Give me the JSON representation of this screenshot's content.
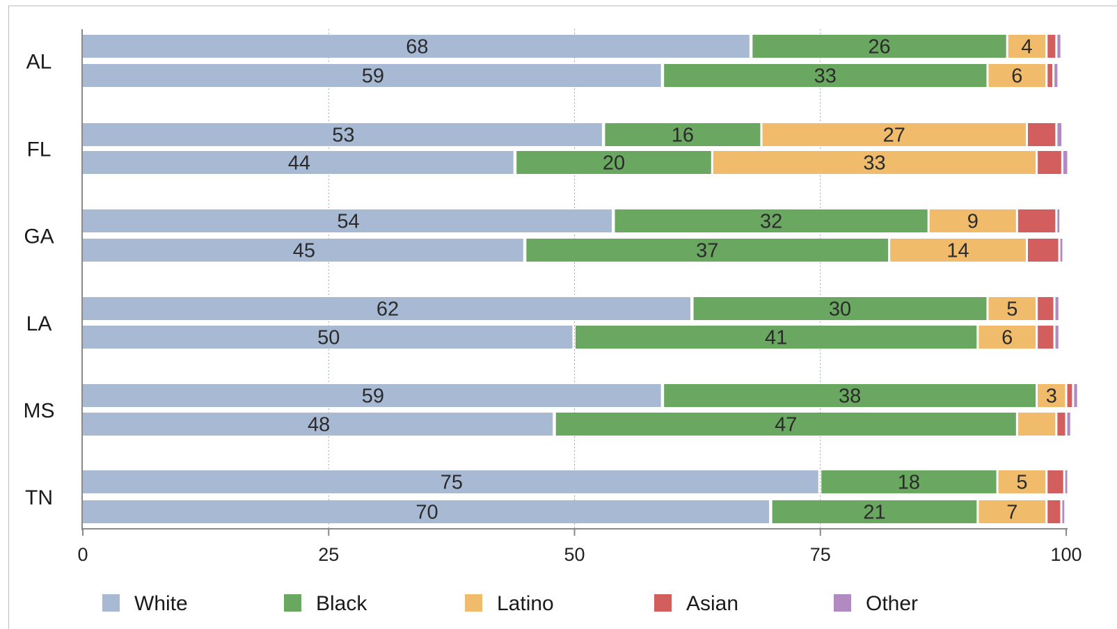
{
  "chart_data": {
    "type": "bar",
    "orientation": "horizontal",
    "stacked": true,
    "categories": [
      "AL",
      "FL",
      "GA",
      "LA",
      "MS",
      "TN"
    ],
    "bars_per_category": 2,
    "series": [
      {
        "name": "White",
        "color": "#a8b9d4",
        "values": [
          [
            68,
            59
          ],
          [
            53,
            44
          ],
          [
            54,
            45
          ],
          [
            62,
            50
          ],
          [
            59,
            48
          ],
          [
            75,
            70
          ]
        ]
      },
      {
        "name": "Black",
        "color": "#6aa760",
        "values": [
          [
            26,
            33
          ],
          [
            16,
            20
          ],
          [
            32,
            37
          ],
          [
            30,
            41
          ],
          [
            38,
            47
          ],
          [
            18,
            21
          ]
        ]
      },
      {
        "name": "Latino",
        "color": "#f0bb6b",
        "values": [
          [
            4,
            6
          ],
          [
            27,
            33
          ],
          [
            9,
            14
          ],
          [
            5,
            6
          ],
          [
            3,
            4
          ],
          [
            5,
            7
          ]
        ]
      },
      {
        "name": "Asian",
        "color": "#d35e5e",
        "values": [
          [
            1,
            0.7
          ],
          [
            3,
            2.6
          ],
          [
            4,
            3.3
          ],
          [
            1.8,
            1.8
          ],
          [
            0.7,
            1
          ],
          [
            1.8,
            1.5
          ]
        ]
      },
      {
        "name": "Other",
        "color": "#b08ac0",
        "values": [
          [
            0.3,
            0.3
          ],
          [
            0.4,
            0.4
          ],
          [
            0.2,
            0.2
          ],
          [
            0.3,
            0.3
          ],
          [
            0.3,
            0.3
          ],
          [
            0.2,
            0.2
          ]
        ]
      }
    ],
    "labels": [
      [
        [
          "68",
          "26",
          "4",
          "",
          ""
        ],
        [
          "59",
          "33",
          "6",
          "",
          ""
        ]
      ],
      [
        [
          "53",
          "16",
          "27",
          "",
          ""
        ],
        [
          "44",
          "20",
          "33",
          "",
          ""
        ]
      ],
      [
        [
          "54",
          "32",
          "9",
          "",
          ""
        ],
        [
          "45",
          "37",
          "14",
          "",
          ""
        ]
      ],
      [
        [
          "62",
          "30",
          "5",
          "",
          ""
        ],
        [
          "50",
          "41",
          "6",
          "",
          ""
        ]
      ],
      [
        [
          "59",
          "38",
          "3",
          "",
          ""
        ],
        [
          "48",
          "47",
          "",
          "",
          ""
        ]
      ],
      [
        [
          "75",
          "18",
          "5",
          "",
          ""
        ],
        [
          "70",
          "21",
          "7",
          "",
          ""
        ]
      ]
    ],
    "xlim": [
      0,
      100
    ],
    "xticks": [
      "0",
      "25",
      "50",
      "75",
      "100"
    ],
    "grid": "vertical-dotted",
    "legend_position": "bottom"
  }
}
